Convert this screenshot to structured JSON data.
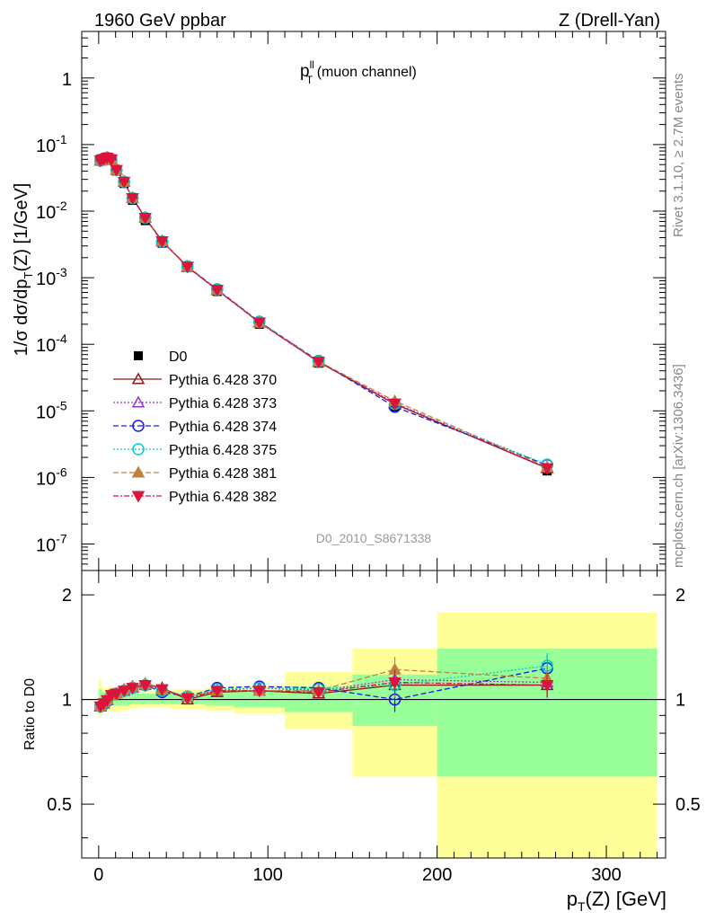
{
  "header": {
    "left": "1960 GeV ppbar",
    "right": "Z (Drell-Yan)"
  },
  "side_text": {
    "rivet": "Rivet 3.1.10, ≥ 2.7M events",
    "mcplots": "mcplots.cern.ch [arXiv:1306.3436]"
  },
  "main_plot": {
    "title_p": "p",
    "title_sup": "ll",
    "title_sub": "T",
    "title_rest": " (muon channel)",
    "watermark": "D0_2010_S8671338",
    "ylabel": "1/σ  dσ/dp_T(Z) [1/GeV]"
  },
  "ratio_plot": {
    "ylabel": "Ratio to D0"
  },
  "xaxis_label": "p_T(Z) [GeV]",
  "chart_data": [
    {
      "type": "line",
      "title": "p_T^ll (muon channel)",
      "ylabel": "1/σ  dσ/dp_T(Z) [1/GeV]",
      "xlabel": "p_T(Z) [GeV]",
      "xlim": [
        -10,
        335
      ],
      "ylim": [
        4e-08,
        5
      ],
      "yscale": "log",
      "ytick_labels": [
        "10^-7",
        "10^-6",
        "10^-5",
        "10^-4",
        "10^-3",
        "10^-2",
        "10^-1",
        "1"
      ],
      "xtick_labels": [
        "0",
        "100",
        "200",
        "300"
      ],
      "legend_position": "left",
      "x": [
        1,
        3,
        5,
        7.5,
        10.5,
        15,
        20,
        27.5,
        37.5,
        52.5,
        70,
        95,
        130,
        175,
        265
      ],
      "data_series": {
        "name": "D0",
        "values": [
          0.06,
          0.062,
          0.064,
          0.058,
          0.04,
          0.026,
          0.0145,
          0.0072,
          0.0033,
          0.00145,
          0.00062,
          0.0002,
          5.2e-05,
          1.15e-05,
          1.25e-06
        ]
      },
      "series": [
        {
          "name": "Pythia 6.428 370",
          "color": "#8b1a1a",
          "dash": "",
          "marker": "triangle-up-open",
          "ratio": [
            0.955,
            0.975,
            0.995,
            1.03,
            1.04,
            1.06,
            1.09,
            1.11,
            1.08,
            1.0,
            1.05,
            1.06,
            1.04,
            1.1,
            1.1
          ]
        },
        {
          "name": "Pythia 6.428 373",
          "color": "#9a32cd",
          "dash": "2,2",
          "marker": "triangle-up-open",
          "ratio": [
            0.955,
            0.975,
            0.995,
            1.03,
            1.04,
            1.06,
            1.08,
            1.1,
            1.06,
            1.02,
            1.06,
            1.08,
            1.06,
            1.14,
            1.12
          ]
        },
        {
          "name": "Pythia 6.428 374",
          "color": "#1a1ae6",
          "dash": "6,3",
          "marker": "circle-open",
          "ratio": [
            0.955,
            0.97,
            0.99,
            1.03,
            1.04,
            1.06,
            1.08,
            1.1,
            1.05,
            1.02,
            1.08,
            1.09,
            1.08,
            1.0,
            1.23
          ]
        },
        {
          "name": "Pythia 6.428 375",
          "color": "#00ced1",
          "dash": "2,2",
          "marker": "circle-open",
          "ratio": [
            0.955,
            0.975,
            0.995,
            1.03,
            1.04,
            1.06,
            1.08,
            1.1,
            1.06,
            1.02,
            1.07,
            1.08,
            1.07,
            1.1,
            1.25
          ]
        },
        {
          "name": "Pythia 6.428 381",
          "color": "#c08040",
          "dash": "6,3",
          "marker": "triangle-up-filled",
          "ratio": [
            0.96,
            0.98,
            1.0,
            1.03,
            1.04,
            1.07,
            1.09,
            1.11,
            1.07,
            1.02,
            1.06,
            1.06,
            1.06,
            1.22,
            1.15
          ]
        },
        {
          "name": "Pythia 6.428 382",
          "color": "#dc143c",
          "dash": "6,2,2,2",
          "marker": "triangle-down-filled",
          "ratio": [
            0.955,
            0.975,
            0.995,
            1.03,
            1.04,
            1.06,
            1.08,
            1.1,
            1.07,
            1.01,
            1.06,
            1.06,
            1.05,
            1.12,
            1.1
          ]
        }
      ]
    },
    {
      "type": "line",
      "ylabel": "Ratio to D0",
      "xlabel": "p_T(Z) [GeV]",
      "xlim": [
        -10,
        335
      ],
      "ylim": [
        0.35,
        2.35
      ],
      "yscale": "log",
      "ytick_labels": [
        "0.5",
        "1",
        "2"
      ],
      "reference_line": 1,
      "bins": [
        {
          "lo": 0,
          "hi": 2,
          "stat": [
            0.93,
            1.07
          ],
          "total": [
            0.89,
            1.13
          ]
        },
        {
          "lo": 2,
          "hi": 4,
          "stat": [
            0.95,
            1.05
          ],
          "total": [
            0.92,
            1.08
          ]
        },
        {
          "lo": 4,
          "hi": 6,
          "stat": [
            0.96,
            1.05
          ],
          "total": [
            0.93,
            1.08
          ]
        },
        {
          "lo": 6,
          "hi": 9,
          "stat": [
            0.96,
            1.05
          ],
          "total": [
            0.93,
            1.09
          ]
        },
        {
          "lo": 9,
          "hi": 12,
          "stat": [
            0.96,
            1.05
          ],
          "total": [
            0.92,
            1.08
          ]
        },
        {
          "lo": 12,
          "hi": 18,
          "stat": [
            0.96,
            1.04
          ],
          "total": [
            0.93,
            1.07
          ]
        },
        {
          "lo": 18,
          "hi": 22,
          "stat": [
            0.97,
            1.04
          ],
          "total": [
            0.94,
            1.07
          ]
        },
        {
          "lo": 22,
          "hi": 33,
          "stat": [
            0.97,
            1.04
          ],
          "total": [
            0.95,
            1.06
          ]
        },
        {
          "lo": 33,
          "hi": 42,
          "stat": [
            0.97,
            1.04
          ],
          "total": [
            0.95,
            1.06
          ]
        },
        {
          "lo": 42,
          "hi": 63,
          "stat": [
            0.97,
            1.04
          ],
          "total": [
            0.94,
            1.07
          ]
        },
        {
          "lo": 63,
          "hi": 80,
          "stat": [
            0.96,
            1.05
          ],
          "total": [
            0.93,
            1.08
          ]
        },
        {
          "lo": 80,
          "hi": 110,
          "stat": [
            0.95,
            1.06
          ],
          "total": [
            0.91,
            1.1
          ]
        },
        {
          "lo": 110,
          "hi": 150,
          "stat": [
            0.92,
            1.09
          ],
          "total": [
            0.82,
            1.2
          ]
        },
        {
          "lo": 150,
          "hi": 200,
          "stat": [
            0.84,
            1.18
          ],
          "total": [
            0.6,
            1.4
          ]
        },
        {
          "lo": 200,
          "hi": 330,
          "stat": [
            0.6,
            1.4
          ],
          "total": [
            0.33,
            1.78
          ]
        }
      ]
    }
  ]
}
